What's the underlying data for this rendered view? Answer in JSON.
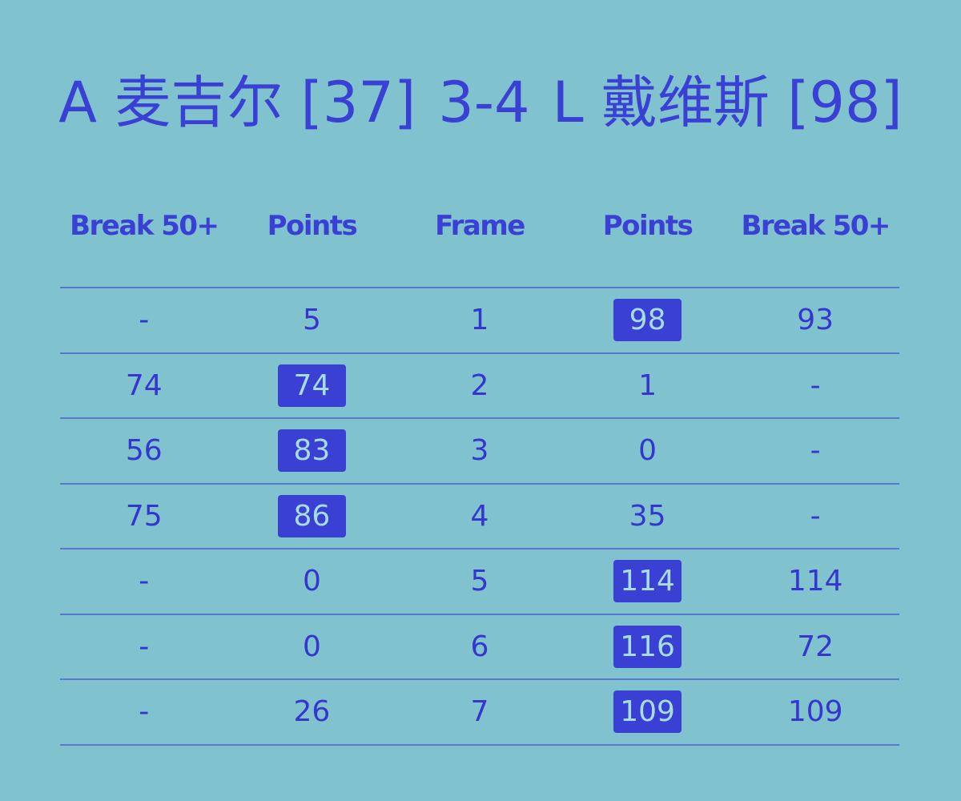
{
  "title": {
    "player1": "A 麦吉尔 [37]",
    "score": "3-4",
    "player2": "L 戴维斯 [98]"
  },
  "colors": {
    "background": "#80c3ce",
    "text": "#3535d0",
    "highlight": "#3a40d4",
    "divider": "#5a78d0"
  },
  "headers": [
    "Break 50+",
    "Points",
    "Frame",
    "Points",
    "Break 50+"
  ],
  "rows": [
    {
      "b1": "-",
      "p1": "5",
      "frame": "1",
      "p2": "98",
      "b2": "93",
      "winner": "p2"
    },
    {
      "b1": "74",
      "p1": "74",
      "frame": "2",
      "p2": "1",
      "b2": "-",
      "winner": "p1"
    },
    {
      "b1": "56",
      "p1": "83",
      "frame": "3",
      "p2": "0",
      "b2": "-",
      "winner": "p1"
    },
    {
      "b1": "75",
      "p1": "86",
      "frame": "4",
      "p2": "35",
      "b2": "-",
      "winner": "p1"
    },
    {
      "b1": "-",
      "p1": "0",
      "frame": "5",
      "p2": "114",
      "b2": "114",
      "winner": "p2"
    },
    {
      "b1": "-",
      "p1": "0",
      "frame": "6",
      "p2": "116",
      "b2": "72",
      "winner": "p2"
    },
    {
      "b1": "-",
      "p1": "26",
      "frame": "7",
      "p2": "109",
      "b2": "109",
      "winner": "p2"
    }
  ]
}
